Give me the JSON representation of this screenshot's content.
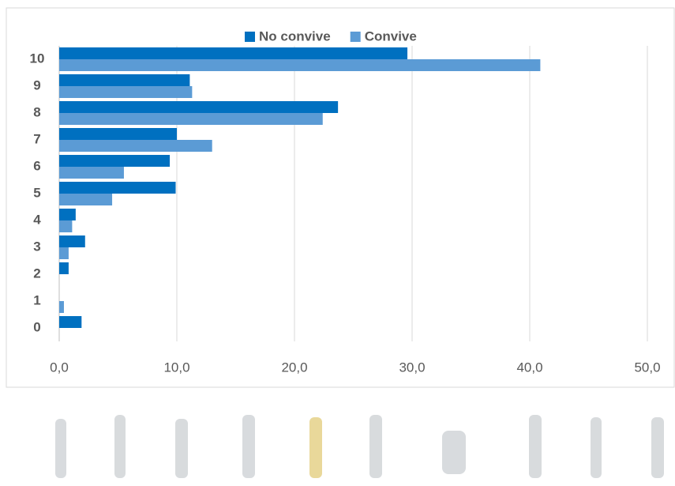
{
  "chart_data": {
    "type": "bar",
    "orientation": "horizontal",
    "categories": [
      "0",
      "1",
      "2",
      "3",
      "4",
      "5",
      "6",
      "7",
      "8",
      "9",
      "10"
    ],
    "series": [
      {
        "name": "No convive",
        "color": "#0070c0",
        "values": [
          1.9,
          0,
          0.8,
          2.2,
          1.4,
          9.9,
          9.4,
          10.0,
          23.7,
          11.1,
          29.6
        ]
      },
      {
        "name": "Convive",
        "color": "#5b9bd5",
        "values": [
          0,
          0.4,
          0,
          0.8,
          1.1,
          4.5,
          5.5,
          13.0,
          22.4,
          11.3,
          40.9
        ]
      }
    ],
    "xlim": [
      0,
      50
    ],
    "xticks": [
      {
        "value": 0,
        "label": "0,0"
      },
      {
        "value": 10,
        "label": "10,0"
      },
      {
        "value": 20,
        "label": "20,0"
      },
      {
        "value": 30,
        "label": "30,0"
      },
      {
        "value": 40,
        "label": "40,0"
      },
      {
        "value": 50,
        "label": "50,0"
      }
    ],
    "grid": true,
    "legend": "top"
  }
}
